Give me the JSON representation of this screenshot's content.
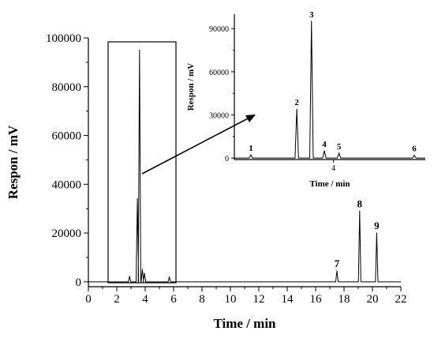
{
  "chart_data": [
    {
      "type": "line",
      "xlabel": "Time / min",
      "ylabel": "Respon / mV",
      "xlim": [
        0,
        22
      ],
      "ylim": [
        -2000,
        100000
      ],
      "xticks": [
        0,
        2,
        4,
        6,
        8,
        10,
        12,
        14,
        16,
        18,
        20,
        22
      ],
      "yticks": [
        0,
        20000,
        40000,
        60000,
        80000,
        100000
      ],
      "peaks": [
        {
          "label": "",
          "x": 2.9,
          "y": 2200
        },
        {
          "label": "",
          "x": 3.45,
          "y": 34000
        },
        {
          "label": "",
          "x": 3.6,
          "y": 95000
        },
        {
          "label": "",
          "x": 3.8,
          "y": 5000
        },
        {
          "label": "",
          "x": 3.95,
          "y": 3500
        },
        {
          "label": "",
          "x": 5.7,
          "y": 2000
        },
        {
          "label": "7",
          "x": 17.5,
          "y": 4500
        },
        {
          "label": "8",
          "x": 19.1,
          "y": 29000
        },
        {
          "label": "9",
          "x": 20.3,
          "y": 20000
        }
      ]
    },
    {
      "type": "line",
      "xlabel": "Time / min",
      "ylabel": "Respon / mV",
      "xlim": [
        1.3,
        6.5
      ],
      "ylim": [
        -1000,
        100000
      ],
      "xticks": [
        4
      ],
      "yticks": [
        0,
        30000,
        60000,
        90000
      ],
      "peaks": [
        {
          "label": "1",
          "x": 1.75,
          "y": 2200
        },
        {
          "label": "2",
          "x": 3.0,
          "y": 34000
        },
        {
          "label": "3",
          "x": 3.4,
          "y": 95000
        },
        {
          "label": "4",
          "x": 3.75,
          "y": 5000
        },
        {
          "label": "5",
          "x": 4.15,
          "y": 3500
        },
        {
          "label": "6",
          "x": 6.2,
          "y": 2000
        }
      ]
    }
  ]
}
